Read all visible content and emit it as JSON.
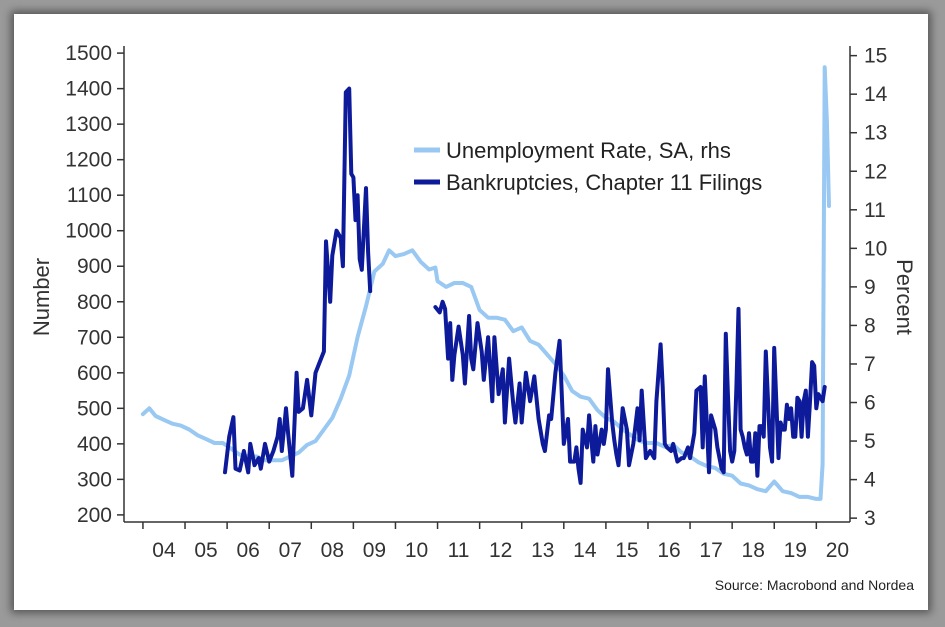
{
  "chart_data": {
    "type": "line",
    "xlabel": "",
    "ylabel": "Number",
    "y2label": "Percent",
    "ylim": [
      180,
      1520
    ],
    "y2lim": [
      2.9,
      15.25
    ],
    "y_ticks": [
      200,
      300,
      400,
      500,
      600,
      700,
      800,
      900,
      1000,
      1100,
      1200,
      1300,
      1400,
      1500
    ],
    "y2_ticks": [
      3,
      4,
      5,
      6,
      7,
      8,
      9,
      10,
      11,
      12,
      13,
      14,
      15
    ],
    "xlim": [
      2003.55,
      2020.8
    ],
    "x_tick_labels": [
      "04",
      "05",
      "06",
      "07",
      "08",
      "09",
      "10",
      "11",
      "12",
      "13",
      "14",
      "15",
      "16",
      "17",
      "18",
      "19",
      "20"
    ],
    "x_tick_positions": [
      2004.5,
      2005.5,
      2006.5,
      2007.5,
      2008.5,
      2009.5,
      2010.5,
      2011.5,
      2012.5,
      2013.5,
      2014.5,
      2015.5,
      2016.5,
      2017.5,
      2018.5,
      2019.5,
      2020.5
    ],
    "grid": false,
    "legend_position": "top-center",
    "source": "Source: Macrobond and Nordea",
    "series": [
      {
        "name": "Unemployment Rate, SA, rhs",
        "axis": "right",
        "color": "#99c8f2",
        "points": [
          [
            2004.0,
            5.7
          ],
          [
            2004.15,
            5.85
          ],
          [
            2004.3,
            5.65
          ],
          [
            2004.5,
            5.55
          ],
          [
            2004.7,
            5.45
          ],
          [
            2004.9,
            5.4
          ],
          [
            2005.1,
            5.3
          ],
          [
            2005.3,
            5.15
          ],
          [
            2005.5,
            5.05
          ],
          [
            2005.7,
            4.95
          ],
          [
            2005.9,
            4.95
          ],
          [
            2006.1,
            4.8
          ],
          [
            2006.3,
            4.65
          ],
          [
            2006.5,
            4.6
          ],
          [
            2006.7,
            4.6
          ],
          [
            2006.9,
            4.5
          ],
          [
            2007.1,
            4.5
          ],
          [
            2007.3,
            4.5
          ],
          [
            2007.5,
            4.6
          ],
          [
            2007.7,
            4.7
          ],
          [
            2007.9,
            4.9
          ],
          [
            2008.1,
            5.0
          ],
          [
            2008.3,
            5.3
          ],
          [
            2008.5,
            5.6
          ],
          [
            2008.7,
            6.1
          ],
          [
            2008.9,
            6.7
          ],
          [
            2009.1,
            7.7
          ],
          [
            2009.3,
            8.5
          ],
          [
            2009.5,
            9.4
          ],
          [
            2009.7,
            9.6
          ],
          [
            2009.85,
            9.95
          ],
          [
            2010.0,
            9.8
          ],
          [
            2010.2,
            9.85
          ],
          [
            2010.4,
            9.95
          ],
          [
            2010.6,
            9.65
          ],
          [
            2010.8,
            9.45
          ],
          [
            2010.95,
            9.5
          ],
          [
            2011.0,
            9.15
          ],
          [
            2011.2,
            9.0
          ],
          [
            2011.4,
            9.1
          ],
          [
            2011.6,
            9.1
          ],
          [
            2011.8,
            9.0
          ],
          [
            2012.0,
            8.4
          ],
          [
            2012.2,
            8.2
          ],
          [
            2012.4,
            8.2
          ],
          [
            2012.6,
            8.15
          ],
          [
            2012.8,
            7.85
          ],
          [
            2013.0,
            7.95
          ],
          [
            2013.2,
            7.6
          ],
          [
            2013.4,
            7.5
          ],
          [
            2013.6,
            7.25
          ],
          [
            2013.8,
            7.0
          ],
          [
            2014.0,
            6.7
          ],
          [
            2014.2,
            6.3
          ],
          [
            2014.4,
            6.15
          ],
          [
            2014.6,
            6.1
          ],
          [
            2014.8,
            5.8
          ],
          [
            2015.0,
            5.6
          ],
          [
            2015.2,
            5.5
          ],
          [
            2015.4,
            5.3
          ],
          [
            2015.6,
            5.15
          ],
          [
            2015.8,
            5.0
          ],
          [
            2016.0,
            4.95
          ],
          [
            2016.2,
            4.95
          ],
          [
            2016.4,
            4.85
          ],
          [
            2016.6,
            4.9
          ],
          [
            2016.8,
            4.7
          ],
          [
            2017.0,
            4.6
          ],
          [
            2017.2,
            4.45
          ],
          [
            2017.4,
            4.35
          ],
          [
            2017.6,
            4.3
          ],
          [
            2017.8,
            4.15
          ],
          [
            2018.0,
            4.1
          ],
          [
            2018.2,
            3.9
          ],
          [
            2018.4,
            3.85
          ],
          [
            2018.6,
            3.75
          ],
          [
            2018.8,
            3.7
          ],
          [
            2019.0,
            3.95
          ],
          [
            2019.2,
            3.7
          ],
          [
            2019.4,
            3.65
          ],
          [
            2019.6,
            3.55
          ],
          [
            2019.8,
            3.55
          ],
          [
            2020.0,
            3.5
          ],
          [
            2020.1,
            3.5
          ],
          [
            2020.15,
            4.4
          ],
          [
            2020.2,
            14.7
          ],
          [
            2020.25,
            13.3
          ],
          [
            2020.3,
            11.1
          ]
        ]
      },
      {
        "name": "Bankruptcies, Chapter 11 Filings",
        "axis": "left",
        "color": "#0d1a9a",
        "segments": [
          [
            [
              2005.95,
              320
            ],
            [
              2006.05,
              420
            ],
            [
              2006.15,
              475
            ],
            [
              2006.2,
              330
            ],
            [
              2006.3,
              325
            ],
            [
              2006.4,
              380
            ],
            [
              2006.5,
              320
            ],
            [
              2006.55,
              400
            ],
            [
              2006.65,
              340
            ],
            [
              2006.75,
              360
            ],
            [
              2006.8,
              330
            ],
            [
              2006.9,
              400
            ],
            [
              2007.0,
              350
            ],
            [
              2007.1,
              380
            ],
            [
              2007.2,
              420
            ],
            [
              2007.25,
              470
            ],
            [
              2007.3,
              380
            ],
            [
              2007.4,
              500
            ],
            [
              2007.45,
              430
            ],
            [
              2007.55,
              310
            ],
            [
              2007.65,
              600
            ],
            [
              2007.7,
              490
            ],
            [
              2007.8,
              500
            ],
            [
              2007.9,
              580
            ],
            [
              2008.0,
              480
            ],
            [
              2008.1,
              600
            ],
            [
              2008.2,
              630
            ],
            [
              2008.3,
              660
            ],
            [
              2008.35,
              970
            ],
            [
              2008.45,
              800
            ],
            [
              2008.5,
              930
            ],
            [
              2008.6,
              1000
            ],
            [
              2008.7,
              980
            ],
            [
              2008.75,
              900
            ],
            [
              2008.82,
              1390
            ],
            [
              2008.9,
              1400
            ],
            [
              2008.95,
              1160
            ],
            [
              2009.0,
              1150
            ],
            [
              2009.05,
              1030
            ],
            [
              2009.1,
              1100
            ],
            [
              2009.15,
              920
            ],
            [
              2009.2,
              890
            ],
            [
              2009.3,
              1120
            ],
            [
              2009.35,
              940
            ],
            [
              2009.4,
              830
            ]
          ],
          [
            [
              2010.95,
              785
            ],
            [
              2011.05,
              770
            ],
            [
              2011.12,
              800
            ],
            [
              2011.18,
              780
            ],
            [
              2011.25,
              640
            ],
            [
              2011.3,
              740
            ],
            [
              2011.35,
              580
            ],
            [
              2011.4,
              650
            ],
            [
              2011.5,
              730
            ],
            [
              2011.6,
              650
            ],
            [
              2011.65,
              570
            ],
            [
              2011.75,
              760
            ],
            [
              2011.8,
              640
            ],
            [
              2011.85,
              610
            ],
            [
              2011.95,
              740
            ],
            [
              2012.05,
              660
            ],
            [
              2012.1,
              580
            ],
            [
              2012.2,
              700
            ],
            [
              2012.3,
              520
            ],
            [
              2012.35,
              700
            ],
            [
              2012.45,
              540
            ],
            [
              2012.55,
              610
            ],
            [
              2012.6,
              460
            ],
            [
              2012.7,
              640
            ],
            [
              2012.8,
              510
            ],
            [
              2012.85,
              460
            ],
            [
              2012.95,
              570
            ],
            [
              2013.0,
              460
            ],
            [
              2013.1,
              600
            ],
            [
              2013.2,
              520
            ],
            [
              2013.3,
              590
            ],
            [
              2013.4,
              470
            ],
            [
              2013.5,
              400
            ],
            [
              2013.55,
              380
            ],
            [
              2013.65,
              480
            ],
            [
              2013.7,
              470
            ],
            [
              2013.8,
              600
            ],
            [
              2013.9,
              690
            ],
            [
              2014.0,
              400
            ],
            [
              2014.1,
              470
            ],
            [
              2014.15,
              350
            ],
            [
              2014.25,
              350
            ],
            [
              2014.3,
              390
            ],
            [
              2014.35,
              330
            ],
            [
              2014.4,
              290
            ],
            [
              2014.45,
              440
            ],
            [
              2014.55,
              390
            ],
            [
              2014.6,
              480
            ],
            [
              2014.7,
              350
            ],
            [
              2014.75,
              450
            ],
            [
              2014.8,
              370
            ],
            [
              2014.9,
              440
            ],
            [
              2014.95,
              400
            ],
            [
              2015.0,
              440
            ],
            [
              2015.05,
              610
            ],
            [
              2015.15,
              460
            ],
            [
              2015.2,
              410
            ],
            [
              2015.25,
              370
            ],
            [
              2015.3,
              340
            ],
            [
              2015.4,
              500
            ],
            [
              2015.5,
              440
            ],
            [
              2015.55,
              340
            ],
            [
              2015.65,
              400
            ],
            [
              2015.75,
              500
            ],
            [
              2015.8,
              410
            ],
            [
              2015.85,
              550
            ],
            [
              2015.95,
              360
            ],
            [
              2016.05,
              380
            ],
            [
              2016.15,
              360
            ],
            [
              2016.2,
              520
            ],
            [
              2016.3,
              680
            ],
            [
              2016.35,
              560
            ],
            [
              2016.4,
              400
            ],
            [
              2016.45,
              390
            ],
            [
              2016.55,
              380
            ],
            [
              2016.6,
              400
            ],
            [
              2016.7,
              350
            ],
            [
              2016.8,
              360
            ],
            [
              2016.85,
              360
            ],
            [
              2016.95,
              390
            ],
            [
              2017.0,
              360
            ],
            [
              2017.1,
              430
            ],
            [
              2017.15,
              550
            ],
            [
              2017.25,
              560
            ],
            [
              2017.3,
              390
            ],
            [
              2017.35,
              590
            ],
            [
              2017.45,
              320
            ],
            [
              2017.5,
              480
            ],
            [
              2017.6,
              440
            ],
            [
              2017.65,
              390
            ],
            [
              2017.75,
              330
            ],
            [
              2017.8,
              320
            ],
            [
              2017.85,
              710
            ],
            [
              2017.9,
              540
            ],
            [
              2017.95,
              380
            ],
            [
              2018.0,
              350
            ],
            [
              2018.05,
              380
            ],
            [
              2018.1,
              560
            ],
            [
              2018.15,
              780
            ],
            [
              2018.2,
              440
            ],
            [
              2018.25,
              420
            ],
            [
              2018.3,
              390
            ],
            [
              2018.35,
              370
            ],
            [
              2018.4,
              430
            ],
            [
              2018.45,
              350
            ],
            [
              2018.5,
              350
            ],
            [
              2018.55,
              430
            ],
            [
              2018.6,
              310
            ],
            [
              2018.65,
              450
            ],
            [
              2018.7,
              450
            ],
            [
              2018.75,
              420
            ],
            [
              2018.8,
              660
            ],
            [
              2018.85,
              530
            ],
            [
              2018.9,
              390
            ],
            [
              2018.95,
              350
            ],
            [
              2019.0,
              670
            ],
            [
              2019.05,
              520
            ],
            [
              2019.1,
              360
            ],
            [
              2019.15,
              460
            ],
            [
              2019.2,
              440
            ],
            [
              2019.25,
              440
            ],
            [
              2019.3,
              510
            ],
            [
              2019.35,
              470
            ],
            [
              2019.4,
              500
            ],
            [
              2019.45,
              420
            ],
            [
              2019.5,
              420
            ],
            [
              2019.55,
              530
            ],
            [
              2019.6,
              520
            ],
            [
              2019.65,
              420
            ],
            [
              2019.7,
              520
            ],
            [
              2019.75,
              550
            ],
            [
              2019.8,
              420
            ],
            [
              2019.85,
              520
            ],
            [
              2019.9,
              630
            ],
            [
              2019.95,
              620
            ],
            [
              2020.0,
              500
            ],
            [
              2020.05,
              540
            ],
            [
              2020.1,
              530
            ],
            [
              2020.15,
              520
            ],
            [
              2020.2,
              560
            ]
          ]
        ]
      }
    ]
  }
}
